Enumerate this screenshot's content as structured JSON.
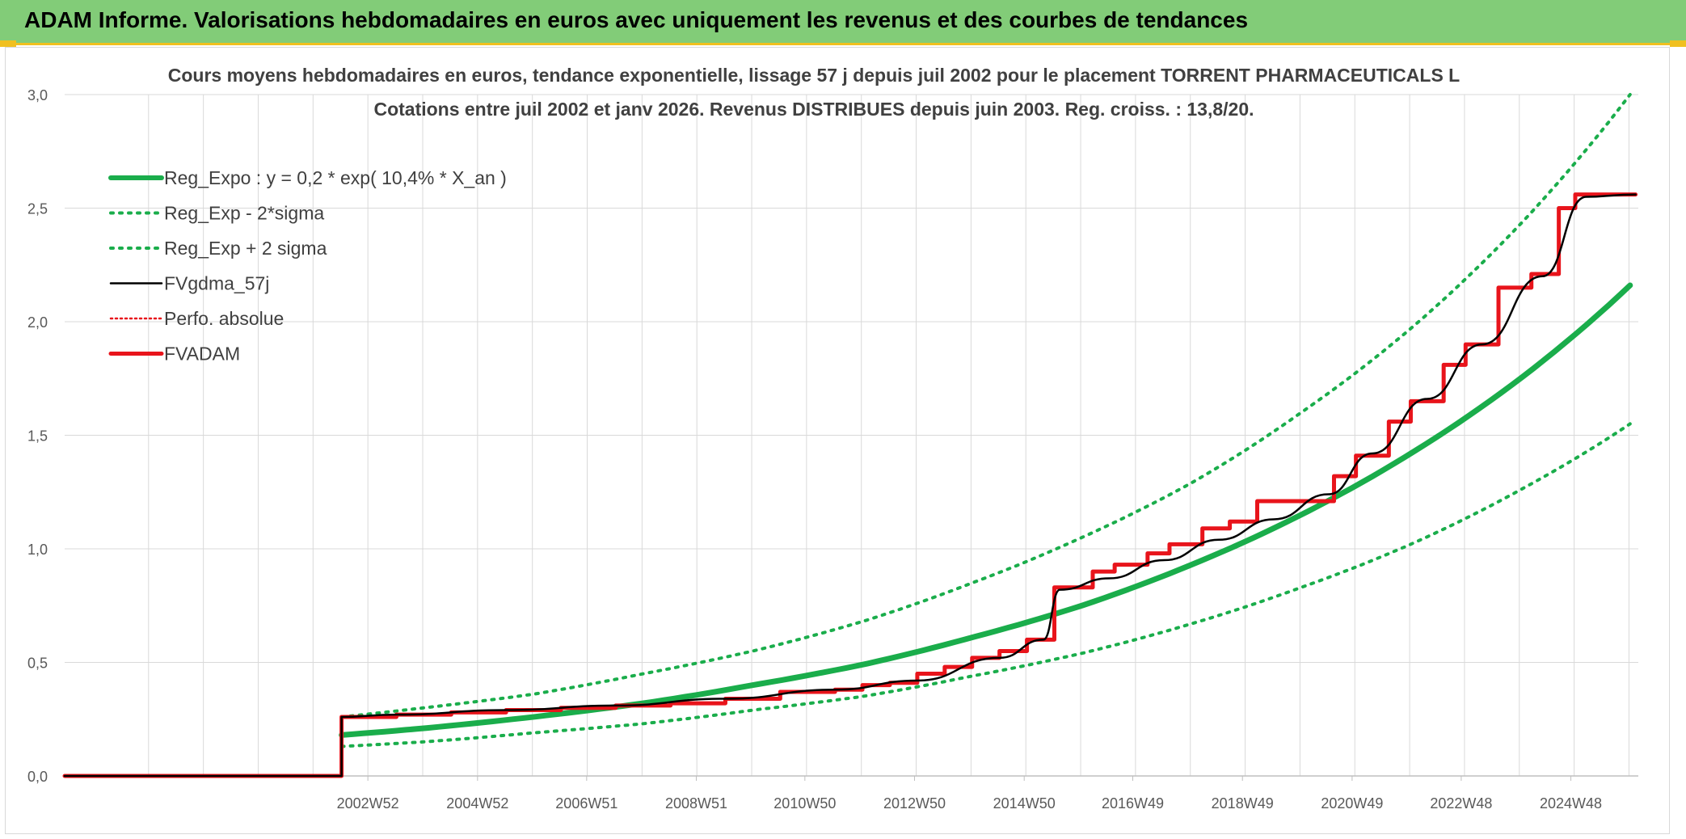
{
  "header": {
    "title": "ADAM Informe. Valorisations hebdomadaires en euros avec uniquement les revenus et des courbes de tendances"
  },
  "colors": {
    "header_bg": "#82cc78",
    "accent": "#f0c020",
    "reg": "#1aad4b",
    "fvgdma": "#000000",
    "fvadam": "#e8141b",
    "perfo": "#e8141b",
    "grid": "#d9d9d9"
  },
  "chart_data": {
    "type": "line",
    "title": "Cours moyens hebdomadaires en euros, tendance exponentielle, lissage 57 j depuis juil 2002 pour le placement TORRENT PHARMACEUTICALS L",
    "subtitle": "Cotations entre juil 2002 et janv 2026. Revenus DISTRIBUES depuis juin 2003. Reg. croiss. : 13,8/20.",
    "xlabel": "",
    "ylabel": "",
    "ylim": [
      0,
      3
    ],
    "yticks": [
      "0,0",
      "0,5",
      "1,0",
      "1,5",
      "2,0",
      "2,5",
      "3,0"
    ],
    "xticks": [
      {
        "label": "2002W52",
        "x": 2002.98
      },
      {
        "label": "2004W52",
        "x": 2004.98
      },
      {
        "label": "2006W51",
        "x": 2006.97
      },
      {
        "label": "2008W51",
        "x": 2008.97
      },
      {
        "label": "2010W50",
        "x": 2010.95
      },
      {
        "label": "2012W50",
        "x": 2012.95
      },
      {
        "label": "2014W50",
        "x": 2014.95
      },
      {
        "label": "2016W49",
        "x": 2016.93
      },
      {
        "label": "2018W49",
        "x": 2018.93
      },
      {
        "label": "2020W49",
        "x": 2020.93
      },
      {
        "label": "2022W48",
        "x": 2022.92
      },
      {
        "label": "2024W48",
        "x": 2024.92
      }
    ],
    "xlim": [
      1997.45,
      2026.15
    ],
    "grid": true,
    "legend_position": "top-left",
    "series": [
      {
        "name": "Reg_Expo : y = 0,2 * exp( 10,4% *  X_an )",
        "style": "thick",
        "x": [
          2002.5,
          2004,
          2006,
          2008,
          2010,
          2012,
          2014,
          2016,
          2018,
          2020,
          2022,
          2024,
          2026
        ],
        "y": [
          0.18,
          0.21,
          0.26,
          0.32,
          0.4,
          0.49,
          0.61,
          0.75,
          0.93,
          1.15,
          1.42,
          1.75,
          2.16
        ]
      },
      {
        "name": "Reg_Exp - 2*sigma",
        "style": "dotted",
        "x": [
          2002.5,
          2004,
          2006,
          2008,
          2010,
          2012,
          2014,
          2016,
          2018,
          2020,
          2022,
          2024,
          2026
        ],
        "y": [
          0.13,
          0.15,
          0.19,
          0.23,
          0.29,
          0.35,
          0.44,
          0.54,
          0.67,
          0.83,
          1.02,
          1.26,
          1.55
        ]
      },
      {
        "name": "Reg_Exp + 2 sigma",
        "style": "dotted",
        "x": [
          2002.5,
          2004,
          2006,
          2008,
          2010,
          2012,
          2014,
          2016,
          2018,
          2020,
          2022,
          2024,
          2026
        ],
        "y": [
          0.26,
          0.3,
          0.36,
          0.45,
          0.55,
          0.68,
          0.85,
          1.05,
          1.29,
          1.6,
          1.97,
          2.43,
          3.0
        ]
      },
      {
        "name": "FVgdma_57j",
        "style": "thin",
        "x": [
          1997.45,
          2002.5,
          2002.5,
          2003.5,
          2005.5,
          2007.5,
          2009.5,
          2011.5,
          2013,
          2014.5,
          2015.3,
          2015.6,
          2016.5,
          2017.5,
          2018.5,
          2019.5,
          2020.5,
          2021.3,
          2022.3,
          2023.3,
          2024.4,
          2025.2,
          2026.1
        ],
        "y": [
          0,
          0,
          0.26,
          0.27,
          0.29,
          0.31,
          0.34,
          0.38,
          0.42,
          0.52,
          0.6,
          0.82,
          0.87,
          0.95,
          1.04,
          1.13,
          1.24,
          1.42,
          1.66,
          1.9,
          2.2,
          2.55,
          2.56
        ]
      },
      {
        "name": "Perfo. absolue",
        "style": "dotted-red",
        "x": [],
        "y": []
      },
      {
        "name": "FVADAM",
        "style": "steps",
        "x": [
          1997.45,
          2002.5,
          2002.5,
          2003.5,
          2004.5,
          2005.5,
          2006.5,
          2007.5,
          2008.5,
          2009.5,
          2010.5,
          2011.5,
          2012.0,
          2012.5,
          2013.0,
          2013.5,
          2014.0,
          2014.5,
          2015.0,
          2015.5,
          2016.2,
          2016.6,
          2017.2,
          2017.6,
          2018.2,
          2018.7,
          2019.2,
          2019.7,
          2020.6,
          2021.0,
          2021.6,
          2022.0,
          2022.6,
          2023.0,
          2023.6,
          2024.2,
          2024.7,
          2025.0,
          2026.1
        ],
        "y": [
          0,
          0,
          0.26,
          0.27,
          0.28,
          0.29,
          0.3,
          0.31,
          0.32,
          0.34,
          0.37,
          0.38,
          0.4,
          0.41,
          0.45,
          0.48,
          0.52,
          0.55,
          0.6,
          0.83,
          0.9,
          0.93,
          0.98,
          1.02,
          1.09,
          1.12,
          1.21,
          1.21,
          1.32,
          1.41,
          1.56,
          1.65,
          1.81,
          1.9,
          2.15,
          2.21,
          2.5,
          2.56,
          2.56
        ]
      }
    ]
  }
}
